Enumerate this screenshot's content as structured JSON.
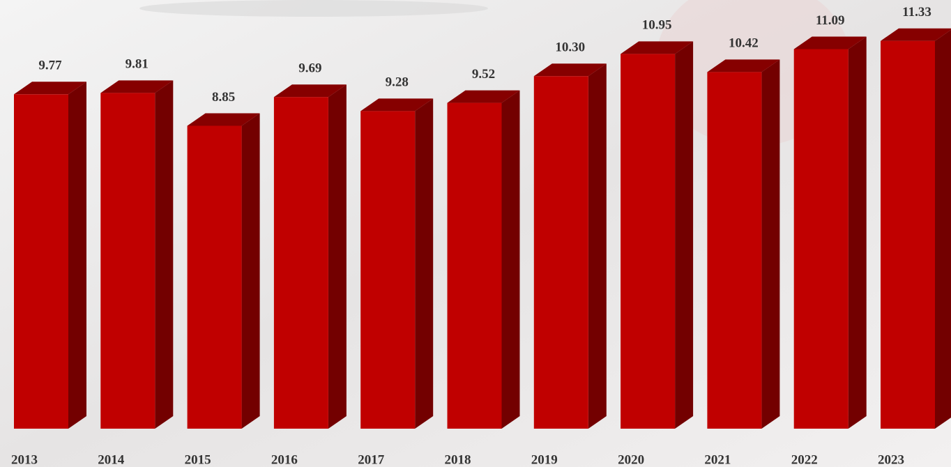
{
  "chart_data": {
    "type": "bar3d",
    "categories": [
      "2013",
      "2014",
      "2015",
      "2016",
      "2017",
      "2018",
      "2019",
      "2020",
      "2021",
      "2022",
      "2023"
    ],
    "values": [
      9.77,
      9.81,
      8.85,
      9.69,
      9.28,
      9.52,
      10.3,
      10.95,
      10.42,
      11.09,
      11.33
    ],
    "value_labels": [
      "9.77",
      "9.81",
      "8.85",
      "9.69",
      "9.28",
      "9.52",
      "10.30",
      "10.95",
      "10.42",
      "11.09",
      "11.33"
    ],
    "color": "#c00000"
  }
}
